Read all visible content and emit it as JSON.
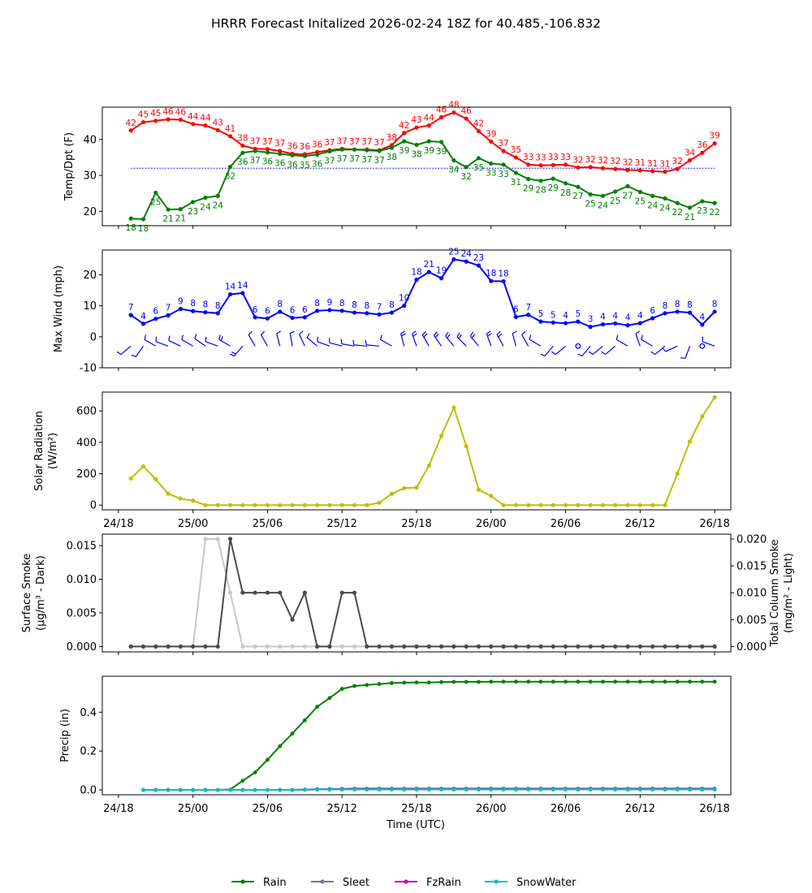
{
  "title": "HRRR Forecast Initalized 2026-02-24 18Z for 40.485,-106.832",
  "xlabel": "Time (UTC)",
  "xticks": [
    "24/18",
    "25/00",
    "25/06",
    "25/12",
    "25/18",
    "26/00",
    "26/06",
    "26/12",
    "26/18"
  ],
  "legend": [
    {
      "label": "Rain",
      "color": "#008000"
    },
    {
      "label": "Sleet",
      "color": "#7f6f9f"
    },
    {
      "label": "FzRain",
      "color": "#c000c0"
    },
    {
      "label": "SnowWater",
      "color": "#00bfbf"
    }
  ],
  "chart_data": [
    {
      "type": "line",
      "panel": "temperature",
      "ylabel": "Temp/Dpt (F)",
      "ylim": [
        16,
        49
      ],
      "yticks": [
        20,
        30,
        40
      ],
      "x_hours": [
        1,
        2,
        3,
        4,
        5,
        6,
        7,
        8,
        9,
        10,
        11,
        12,
        13,
        14,
        15,
        16,
        17,
        18,
        19,
        20,
        21,
        22,
        23,
        24,
        25,
        26,
        27,
        28,
        29,
        30,
        31,
        32,
        33,
        34,
        35,
        36,
        37,
        38,
        39,
        40,
        41,
        42,
        43,
        44,
        45,
        46,
        47,
        48
      ],
      "freezing_line": 32,
      "series": [
        {
          "name": "Temperature",
          "color": "#ff0000",
          "values": [
            42.5,
            44.8,
            45.2,
            45.6,
            45.5,
            44.3,
            43.9,
            42.6,
            40.9,
            38.3,
            37.4,
            37.3,
            36.8,
            36.0,
            35.9,
            36.5,
            37.0,
            37.4,
            37.2,
            37.2,
            37.0,
            38.4,
            41.8,
            43.3,
            43.9,
            46.2,
            47.5,
            45.8,
            42.3,
            39.4,
            36.8,
            35.0,
            33.0,
            32.8,
            32.9,
            33.0,
            32.2,
            32.3,
            32.0,
            31.8,
            31.5,
            31.4,
            31.2,
            31.0,
            31.8,
            34.2,
            36.3,
            38.9
          ],
          "labels": [
            "42",
            "45",
            "45",
            "46",
            "46",
            "44",
            "44",
            "43",
            "41",
            "38",
            "37",
            "37",
            "37",
            "36",
            "36",
            "36",
            "37",
            "37",
            "37",
            "37",
            "37",
            "38",
            "42",
            "43",
            "44",
            "46",
            "48",
            "46",
            "42",
            "39",
            "37",
            "35",
            "33",
            "33",
            "33",
            "33",
            "32",
            "32",
            "32",
            "32",
            "32",
            "31",
            "31",
            "31",
            "32",
            "34",
            "36",
            "39"
          ]
        },
        {
          "name": "Dewpoint",
          "color": "#008000",
          "values": [
            18.0,
            17.8,
            25.2,
            20.5,
            20.6,
            22.6,
            23.8,
            24.3,
            32.4,
            36.3,
            36.8,
            36.4,
            36.0,
            35.6,
            35.4,
            35.8,
            36.7,
            37.2,
            37.2,
            37.0,
            36.8,
            37.7,
            39.5,
            38.5,
            39.5,
            39.3,
            34.2,
            32.3,
            34.8,
            33.3,
            33.0,
            30.7,
            29.0,
            28.5,
            29.1,
            27.8,
            26.8,
            24.7,
            24.3,
            25.5,
            27.0,
            25.4,
            24.3,
            23.6,
            22.3,
            21.0,
            22.8,
            22.3
          ],
          "labels": [
            "18",
            "18",
            "25",
            "21",
            "21",
            "23",
            "24",
            "24",
            "32",
            "36",
            "37",
            "36",
            "36",
            "36",
            "35",
            "36",
            "37",
            "37",
            "37",
            "37",
            "37",
            "38",
            "39",
            "38",
            "39",
            "39",
            "34",
            "32",
            "35",
            "33",
            "33",
            "31",
            "29",
            "28",
            "29",
            "28",
            "27",
            "25",
            "24",
            "25",
            "27",
            "25",
            "24",
            "24",
            "22",
            "21",
            "23",
            "22"
          ]
        }
      ]
    },
    {
      "type": "line",
      "panel": "wind",
      "ylabel": "Max Wind (mph)",
      "ylim": [
        -10,
        28
      ],
      "yticks": [
        -10,
        0,
        10,
        20
      ],
      "series": [
        {
          "name": "Max Wind",
          "color": "#0000ff",
          "values": [
            7.0,
            4.2,
            5.8,
            6.9,
            9.0,
            8.3,
            7.9,
            7.6,
            13.7,
            14.1,
            6.3,
            5.9,
            8.1,
            6.1,
            6.3,
            8.4,
            8.6,
            8.4,
            7.8,
            7.6,
            7.2,
            7.8,
            10.0,
            18.4,
            20.9,
            18.9,
            25.0,
            24.3,
            23.0,
            18.0,
            17.9,
            6.4,
            7.1,
            4.9,
            4.6,
            4.4,
            4.9,
            3.2,
            4.0,
            4.3,
            3.7,
            4.4,
            6.0,
            7.6,
            8.1,
            7.8,
            3.9,
            8.1
          ],
          "labels": [
            "7",
            "4",
            "6",
            "7",
            "9",
            "8",
            "8",
            "8",
            "14",
            "14",
            "6",
            "6",
            "8",
            "6",
            "6",
            "8",
            "9",
            "8",
            "8",
            "8",
            "7",
            "8",
            "10",
            "18",
            "21",
            "19",
            "25",
            "24",
            "23",
            "18",
            "18",
            "6",
            "7",
            "5",
            "5",
            "4",
            "5",
            "3",
            "4",
            "4",
            "4",
            "4",
            "6",
            "8",
            "8",
            "8",
            "4",
            "8"
          ]
        }
      ],
      "wind_barbs_direction_deg": [
        230,
        215,
        300,
        290,
        295,
        300,
        305,
        290,
        300,
        220,
        330,
        330,
        345,
        350,
        335,
        310,
        290,
        285,
        280,
        275,
        275,
        300,
        345,
        340,
        330,
        325,
        320,
        315,
        320,
        340,
        330,
        345,
        330,
        300,
        220,
        230,
        0,
        220,
        230,
        230,
        300,
        340,
        300,
        230,
        245,
        200,
        0,
        290
      ]
    },
    {
      "type": "line",
      "panel": "solar",
      "ylabel": "Solar Radiation (W/m²)",
      "ylim": [
        -30,
        720
      ],
      "yticks": [
        0,
        200,
        400,
        600
      ],
      "series": [
        {
          "name": "Solar Radiation",
          "color": "#bfbf00",
          "values": [
            170,
            247,
            165,
            72,
            42,
            28,
            0,
            0,
            0,
            0,
            0,
            0,
            0,
            0,
            0,
            0,
            0,
            0,
            0,
            0,
            15,
            72,
            108,
            112,
            252,
            442,
            622,
            375,
            98,
            58,
            0,
            0,
            0,
            0,
            0,
            0,
            0,
            0,
            0,
            0,
            0,
            0,
            0,
            0,
            200,
            405,
            565,
            687
          ]
        }
      ]
    },
    {
      "type": "line",
      "panel": "smoke",
      "ylabel_left": "Surface Smoke (μg/m³ - Dark)",
      "ylabel_right": "Total Column Smoke (mg/m² - Light)",
      "ylim_left": [
        -0.0008,
        0.0167
      ],
      "yticks_left": [
        0.0,
        0.005,
        0.01,
        0.015
      ],
      "ylim_right": [
        -0.001,
        0.0209
      ],
      "yticks_right": [
        0.0,
        0.005,
        0.01,
        0.015,
        0.02
      ],
      "series": [
        {
          "name": "Surface Smoke",
          "color": "#4a4a4a",
          "axis": "left",
          "values": [
            0,
            0,
            0,
            0,
            0,
            0,
            0,
            0,
            0.016,
            0.008,
            0.008,
            0.008,
            0.008,
            0.004,
            0.008,
            0,
            0,
            0.008,
            0.008,
            0,
            0,
            0,
            0,
            0,
            0,
            0,
            0,
            0,
            0,
            0,
            0,
            0,
            0,
            0,
            0,
            0,
            0,
            0,
            0,
            0,
            0,
            0,
            0,
            0,
            0,
            0,
            0,
            0
          ]
        },
        {
          "name": "Total Column Smoke",
          "color": "#c8c8c8",
          "axis": "right",
          "values": [
            0,
            0,
            0,
            0,
            0,
            0,
            0.02,
            0.02,
            0.01,
            0,
            0,
            0,
            0,
            0,
            0,
            0,
            0,
            0,
            0,
            0,
            0,
            0,
            0,
            0,
            0,
            0,
            0,
            0,
            0,
            0,
            0,
            0,
            0,
            0,
            0,
            0,
            0,
            0,
            0,
            0,
            0,
            0,
            0,
            0,
            0,
            0,
            0,
            0
          ]
        }
      ]
    },
    {
      "type": "line",
      "panel": "precip",
      "ylabel": "Precip (in)",
      "ylim": [
        -0.025,
        0.585
      ],
      "yticks": [
        0.0,
        0.2,
        0.4
      ],
      "series": [
        {
          "name": "Rain",
          "color": "#008000",
          "values": [
            0,
            0,
            0,
            0,
            0,
            0,
            0,
            0.002,
            0.047,
            0.09,
            0.155,
            0.225,
            0.29,
            0.358,
            0.428,
            0.473,
            0.52,
            0.535,
            0.54,
            0.545,
            0.55,
            0.552,
            0.553,
            0.553,
            0.555,
            0.556,
            0.556,
            0.556,
            0.557,
            0.557,
            0.557,
            0.557,
            0.557,
            0.557,
            0.557,
            0.557,
            0.557,
            0.557,
            0.557,
            0.557,
            0.557,
            0.557,
            0.557,
            0.557,
            0.557,
            0.557,
            0.557
          ]
        },
        {
          "name": "Sleet",
          "color": "#7f6f9f",
          "values": [
            0,
            0,
            0,
            0,
            0,
            0,
            0,
            0,
            0,
            0,
            0,
            0,
            0,
            0.002,
            0.004,
            0.005,
            0.006,
            0.007,
            0.007,
            0.007,
            0.007,
            0.007,
            0.007,
            0.007,
            0.007,
            0.007,
            0.007,
            0.007,
            0.007,
            0.007,
            0.007,
            0.007,
            0.007,
            0.007,
            0.007,
            0.007,
            0.007,
            0.007,
            0.007,
            0.007,
            0.007,
            0.007,
            0.007,
            0.007,
            0.007,
            0.007,
            0.007
          ]
        },
        {
          "name": "FzRain",
          "color": "#c000c0",
          "values": [
            0,
            0,
            0,
            0,
            0,
            0,
            0,
            0,
            0,
            0,
            0,
            0,
            0,
            0.001,
            0.002,
            0.002,
            0.003,
            0.003,
            0.003,
            0.003,
            0.003,
            0.003,
            0.003,
            0.003,
            0.003,
            0.003,
            0.003,
            0.003,
            0.003,
            0.003,
            0.003,
            0.003,
            0.003,
            0.003,
            0.003,
            0.003,
            0.003,
            0.003,
            0.003,
            0.003,
            0.003,
            0.003,
            0.003,
            0.003,
            0.003,
            0.003,
            0.003
          ]
        },
        {
          "name": "SnowWater",
          "color": "#00bfbf",
          "values": [
            0,
            0,
            0,
            0,
            0,
            0,
            0,
            0,
            0,
            0,
            0,
            0,
            0,
            0.001,
            0.002,
            0.002,
            0.002,
            0.002,
            0.002,
            0.002,
            0.002,
            0.002,
            0.002,
            0.002,
            0.002,
            0.002,
            0.002,
            0.002,
            0.002,
            0.002,
            0.002,
            0.002,
            0.002,
            0.002,
            0.002,
            0.002,
            0.002,
            0.002,
            0.002,
            0.002,
            0.002,
            0.002,
            0.002,
            0.002,
            0.002,
            0.002,
            0.002
          ]
        }
      ]
    }
  ]
}
